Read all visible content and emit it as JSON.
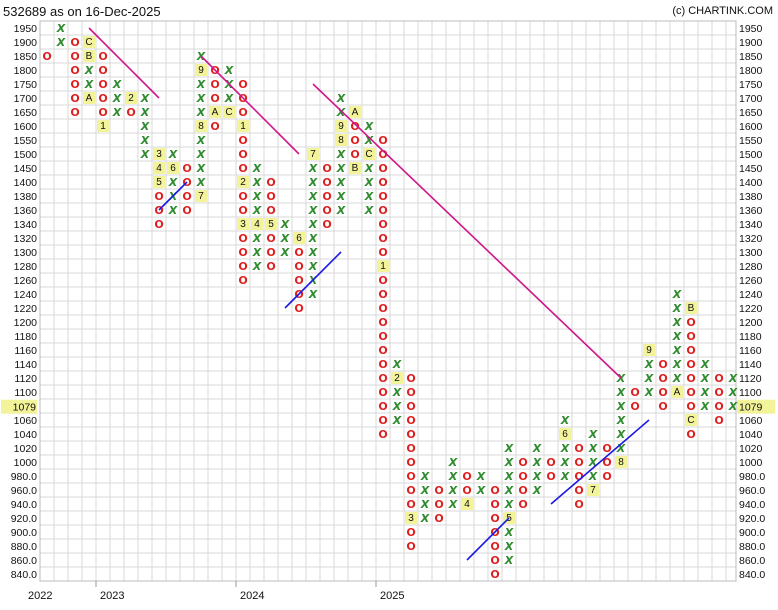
{
  "header": {
    "title": "532689 as on 16-Dec-2025",
    "credit": "(c) CHARTINK.COM"
  },
  "colors": {
    "x_mark": "#2e8b2e",
    "o_mark": "#e02020",
    "month_bg": "#f3f39a",
    "resistance_line": "#d0168a",
    "support_line": "#1a1ae0",
    "grid": "#d8d8d8",
    "last_price_bg": "#f3f39a"
  },
  "chart_data": {
    "type": "point-and-figure",
    "price_levels": [
      1950,
      1900,
      1850,
      1800,
      1750,
      1700,
      1650,
      1600,
      1550,
      1500,
      1450,
      1400,
      1380,
      1360,
      1340,
      1320,
      1300,
      1280,
      1260,
      1240,
      1220,
      1200,
      1180,
      1160,
      1140,
      1120,
      1100,
      1080,
      1060,
      1040,
      1020,
      1000,
      980,
      960,
      940,
      920,
      900,
      880,
      860,
      840
    ],
    "tick_labels": [
      "1950",
      "1900",
      "1850",
      "1800",
      "1750",
      "1700",
      "1650",
      "1600",
      "1550",
      "1500",
      "1450",
      "1400",
      "1380",
      "1360",
      "1340",
      "1320",
      "1300",
      "1280",
      "1260",
      "1240",
      "1220",
      "1200",
      "1180",
      "1160",
      "1140",
      "1120",
      "1100",
      "1080",
      "1060",
      "1040",
      "1020",
      "1000",
      "980.0",
      "960.0",
      "940.0",
      "920.0",
      "900.0",
      "880.0",
      "860.0",
      "840.0"
    ],
    "last_price": "1079",
    "x_labels": [
      {
        "col": 0,
        "label": "2022"
      },
      {
        "col": 4,
        "label": "2023"
      },
      {
        "col": 14,
        "label": "2024"
      },
      {
        "col": 24,
        "label": "2025"
      }
    ],
    "columns": [
      {
        "type": "O",
        "top": 1850,
        "bottom": 1850,
        "months": {}
      },
      {
        "type": "X",
        "bottom": 1900,
        "top": 1950,
        "months": {}
      },
      {
        "type": "O",
        "top": 1900,
        "bottom": 1650,
        "months": {}
      },
      {
        "type": "X",
        "bottom": 1700,
        "top": 1900,
        "months": {
          "1900": "C",
          "1850": "B",
          "1700": "A"
        }
      },
      {
        "type": "O",
        "top": 1850,
        "bottom": 1600,
        "months": {
          "1600": "1"
        }
      },
      {
        "type": "X",
        "bottom": 1650,
        "top": 1750,
        "months": {}
      },
      {
        "type": "O",
        "top": 1700,
        "bottom": 1650,
        "months": {
          "1700": "2"
        }
      },
      {
        "type": "X",
        "bottom": 1500,
        "top": 1700,
        "months": {}
      },
      {
        "type": "O",
        "top": 1500,
        "bottom": 1340,
        "months": {
          "1500": "3",
          "1450": "4",
          "1400": "5"
        }
      },
      {
        "type": "X",
        "bottom": 1360,
        "top": 1500,
        "months": {
          "1450": "6"
        }
      },
      {
        "type": "O",
        "top": 1450,
        "bottom": 1360,
        "months": {}
      },
      {
        "type": "X",
        "bottom": 1380,
        "top": 1850,
        "months": {
          "1800": "9",
          "1600": "8",
          "1380": "7"
        }
      },
      {
        "type": "O",
        "top": 1800,
        "bottom": 1600,
        "months": {
          "1650": "A"
        }
      },
      {
        "type": "X",
        "bottom": 1650,
        "top": 1800,
        "months": {
          "1650": "C"
        }
      },
      {
        "type": "O",
        "top": 1750,
        "bottom": 1260,
        "months": {
          "1600": "1",
          "1400": "2",
          "1340": "3"
        }
      },
      {
        "type": "X",
        "bottom": 1280,
        "top": 1450,
        "months": {
          "1340": "4"
        }
      },
      {
        "type": "O",
        "top": 1400,
        "bottom": 1280,
        "months": {
          "1340": "5"
        }
      },
      {
        "type": "X",
        "bottom": 1300,
        "top": 1340,
        "months": {}
      },
      {
        "type": "O",
        "top": 1320,
        "bottom": 1220,
        "months": {
          "1320": "6"
        }
      },
      {
        "type": "X",
        "bottom": 1240,
        "top": 1500,
        "months": {
          "1500": "7"
        }
      },
      {
        "type": "O",
        "top": 1450,
        "bottom": 1340,
        "months": {}
      },
      {
        "type": "X",
        "bottom": 1360,
        "top": 1700,
        "months": {
          "1600": "9",
          "1550": "8"
        }
      },
      {
        "type": "O",
        "top": 1650,
        "bottom": 1450,
        "months": {
          "1650": "A",
          "1450": "B"
        }
      },
      {
        "type": "X",
        "bottom": 1360,
        "top": 1600,
        "months": {
          "1500": "C"
        }
      },
      {
        "type": "O",
        "top": 1550,
        "bottom": 1040,
        "months": {
          "1280": "1"
        }
      },
      {
        "type": "X",
        "bottom": 1060,
        "top": 1140,
        "months": {
          "1120": "2"
        }
      },
      {
        "type": "O",
        "top": 1120,
        "bottom": 880,
        "months": {
          "920": "3"
        }
      },
      {
        "type": "X",
        "bottom": 920,
        "top": 980,
        "months": {}
      },
      {
        "type": "O",
        "top": 960,
        "bottom": 920,
        "months": {}
      },
      {
        "type": "X",
        "bottom": 940,
        "top": 1000,
        "months": {}
      },
      {
        "type": "O",
        "top": 980,
        "bottom": 940,
        "months": {
          "940": "4"
        }
      },
      {
        "type": "X",
        "bottom": 960,
        "top": 980,
        "months": {}
      },
      {
        "type": "O",
        "top": 960,
        "bottom": 840,
        "months": {}
      },
      {
        "type": "X",
        "bottom": 860,
        "top": 1020,
        "months": {
          "920": "5"
        }
      },
      {
        "type": "O",
        "top": 1000,
        "bottom": 940,
        "months": {}
      },
      {
        "type": "X",
        "bottom": 960,
        "top": 1020,
        "months": {}
      },
      {
        "type": "O",
        "top": 1000,
        "bottom": 980,
        "months": {}
      },
      {
        "type": "X",
        "bottom": 980,
        "top": 1060,
        "months": {
          "1040": "6"
        }
      },
      {
        "type": "O",
        "top": 1020,
        "bottom": 940,
        "months": {}
      },
      {
        "type": "X",
        "bottom": 960,
        "top": 1040,
        "months": {
          "960": "7"
        }
      },
      {
        "type": "O",
        "top": 1020,
        "bottom": 980,
        "months": {}
      },
      {
        "type": "X",
        "bottom": 1000,
        "top": 1120,
        "months": {
          "1000": "8"
        }
      },
      {
        "type": "O",
        "top": 1100,
        "bottom": 1080,
        "months": {}
      },
      {
        "type": "X",
        "bottom": 1100,
        "top": 1160,
        "months": {
          "1160": "9"
        }
      },
      {
        "type": "O",
        "top": 1140,
        "bottom": 1080,
        "months": {}
      },
      {
        "type": "X",
        "bottom": 1100,
        "top": 1240,
        "months": {
          "1100": "A"
        }
      },
      {
        "type": "O",
        "top": 1220,
        "bottom": 1040,
        "months": {
          "1220": "B",
          "1060": "C"
        }
      },
      {
        "type": "X",
        "bottom": 1080,
        "top": 1140,
        "months": {}
      },
      {
        "type": "O",
        "top": 1120,
        "bottom": 1060,
        "months": {}
      },
      {
        "type": "X",
        "bottom": 1080,
        "top": 1120,
        "months": {}
      }
    ],
    "trendlines": [
      {
        "kind": "resistance",
        "from": [
          3,
          1950
        ],
        "to": [
          8,
          1700
        ]
      },
      {
        "kind": "resistance",
        "from": [
          11,
          1850
        ],
        "to": [
          18,
          1500
        ]
      },
      {
        "kind": "resistance",
        "from": [
          19,
          1750
        ],
        "to": [
          41,
          1120
        ]
      },
      {
        "kind": "support",
        "from": [
          8,
          1360
        ],
        "to": [
          10,
          1400
        ]
      },
      {
        "kind": "support",
        "from": [
          17,
          1220
        ],
        "to": [
          21,
          1300
        ]
      },
      {
        "kind": "support",
        "from": [
          30,
          860
        ],
        "to": [
          33,
          920
        ]
      },
      {
        "kind": "support",
        "from": [
          36,
          940
        ],
        "to": [
          43,
          1060
        ]
      }
    ]
  }
}
